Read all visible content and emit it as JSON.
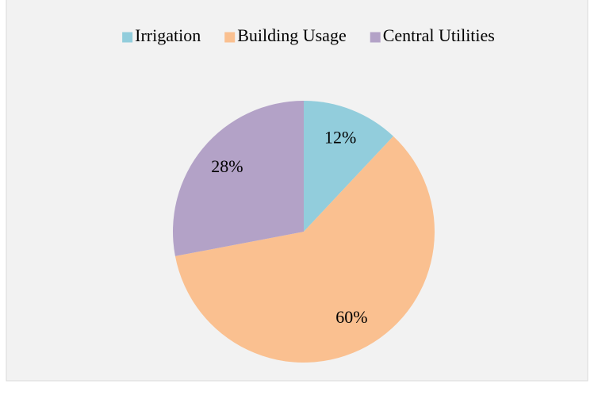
{
  "chart_data": {
    "type": "pie",
    "categories": [
      "Irrigation",
      "Building Usage",
      "Central Utilities"
    ],
    "values": [
      12,
      60,
      28
    ],
    "value_labels": [
      "12%",
      "60%",
      "28%"
    ],
    "colors": [
      "#92cddc",
      "#fac090",
      "#b3a2c7"
    ],
    "legend": "top"
  }
}
